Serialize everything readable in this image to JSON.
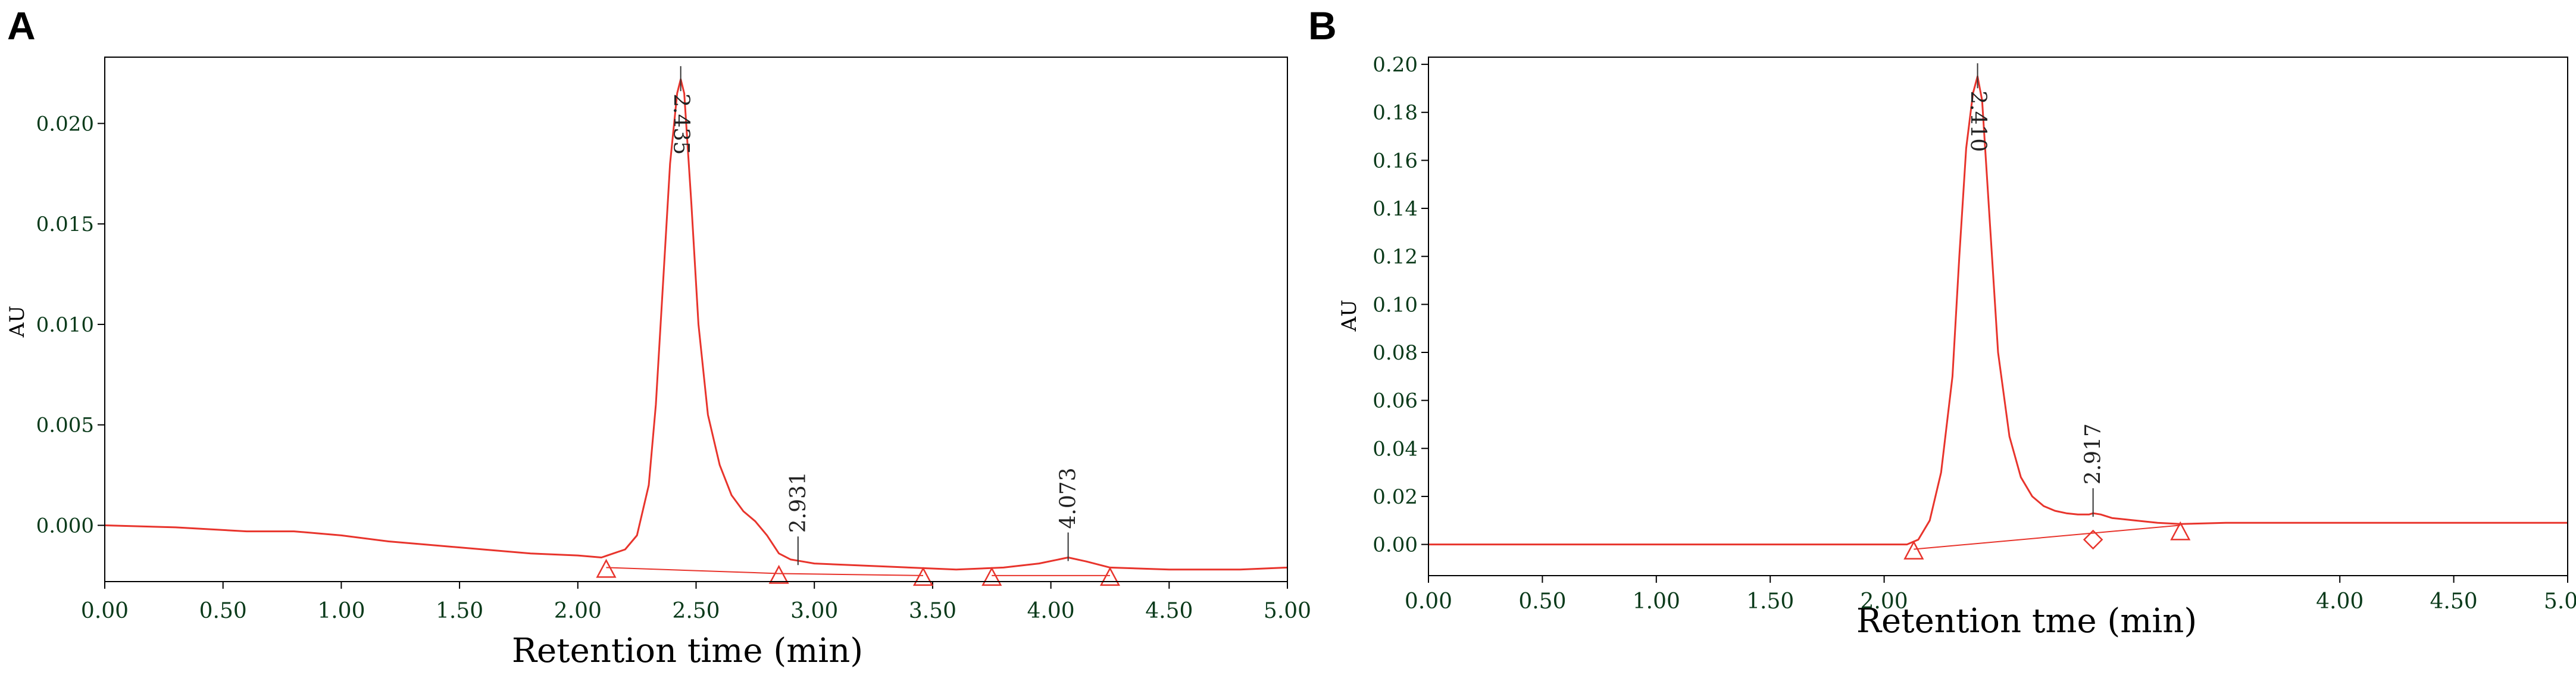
{
  "chart_data": [
    {
      "panel_label": "A",
      "type": "line",
      "xlabel": "Retention time (min)",
      "ylabel": "AU",
      "xlim": [
        0,
        5
      ],
      "ylim": [
        -0.0028,
        0.0233
      ],
      "x_ticks": [
        0,
        0.5,
        1,
        1.5,
        2,
        2.5,
        3,
        3.5,
        4,
        4.5,
        5
      ],
      "x_tick_labels": [
        "0.00",
        "0.50",
        "1.00",
        "1.50",
        "2.00",
        "2.50",
        "3.00",
        "3.50",
        "4.00",
        "4.50",
        "5.00"
      ],
      "y_ticks": [
        0,
        0.005,
        0.01,
        0.015,
        0.02
      ],
      "y_tick_labels": [
        "0.000",
        "0.005",
        "0.010",
        "0.015",
        "0.020"
      ],
      "color": "#e8342c",
      "series": [
        {
          "x": [
            0,
            0.3,
            0.6,
            0.8,
            1.0,
            1.2,
            1.4,
            1.6,
            1.8,
            2.0,
            2.1,
            2.2,
            2.25,
            2.3,
            2.33,
            2.36,
            2.39,
            2.42,
            2.435,
            2.45,
            2.48,
            2.51,
            2.55,
            2.6,
            2.65,
            2.7,
            2.75,
            2.8,
            2.85,
            2.9,
            2.95,
            3.0,
            3.2,
            3.4,
            3.6,
            3.8,
            3.95,
            4.073,
            4.15,
            4.25,
            4.5,
            4.8,
            5.0
          ],
          "y": [
            0.0,
            -0.0001,
            -0.0003,
            -0.0003,
            -0.0005,
            -0.0008,
            -0.001,
            -0.0012,
            -0.0014,
            -0.0015,
            -0.0016,
            -0.0012,
            -0.0005,
            0.002,
            0.006,
            0.012,
            0.018,
            0.0215,
            0.0222,
            0.0215,
            0.016,
            0.01,
            0.0055,
            0.003,
            0.0015,
            0.0007,
            0.0002,
            -0.0005,
            -0.0014,
            -0.0017,
            -0.0018,
            -0.0019,
            -0.002,
            -0.0021,
            -0.0022,
            -0.0021,
            -0.0019,
            -0.0016,
            -0.0018,
            -0.0021,
            -0.0022,
            -0.0022,
            -0.0021
          ]
        }
      ],
      "baselines": [
        {
          "x": [
            2.12,
            2.85
          ],
          "y": [
            -0.0021,
            -0.0024
          ]
        },
        {
          "x": [
            2.85,
            3.46
          ],
          "y": [
            -0.0024,
            -0.0025
          ]
        },
        {
          "x": [
            3.75,
            4.25
          ],
          "y": [
            -0.0025,
            -0.0025
          ]
        }
      ],
      "integration_markers": [
        {
          "x": 2.12,
          "y": -0.0021,
          "shape": "triangle"
        },
        {
          "x": 2.85,
          "y": -0.0024,
          "shape": "triangle"
        },
        {
          "x": 3.46,
          "y": -0.0025,
          "shape": "triangle"
        },
        {
          "x": 3.75,
          "y": -0.0025,
          "shape": "triangle"
        },
        {
          "x": 4.25,
          "y": -0.0025,
          "shape": "triangle"
        }
      ],
      "peak_labels": [
        {
          "x": 2.435,
          "y": 0.0222,
          "text": "2.435"
        },
        {
          "x": 2.931,
          "y": -0.0018,
          "text": "2.931"
        },
        {
          "x": 4.073,
          "y": -0.0016,
          "text": "4.073"
        }
      ]
    },
    {
      "panel_label": "B",
      "type": "line",
      "xlabel": "Retention tme (min)",
      "ylabel": "AU",
      "xlim": [
        0,
        5
      ],
      "ylim": [
        -0.013,
        0.203
      ],
      "x_ticks": [
        0,
        0.5,
        1,
        1.5,
        2,
        4,
        4.5,
        5
      ],
      "x_tick_labels": [
        "0.00",
        "0.50",
        "1.00",
        "1.50",
        "2.00",
        "4.00",
        "4.50",
        "5.00"
      ],
      "y_ticks": [
        0,
        0.02,
        0.04,
        0.06,
        0.08,
        0.1,
        0.12,
        0.14,
        0.16,
        0.18,
        0.2
      ],
      "y_tick_labels": [
        "0.00",
        "0.02",
        "0.04",
        "0.06",
        "0.08",
        "0.10",
        "0.12",
        "0.14",
        "0.16",
        "0.18",
        "0.20"
      ],
      "color": "#e8342c",
      "series": [
        {
          "x": [
            0,
            0.5,
            1.0,
            1.5,
            2.0,
            2.1,
            2.15,
            2.2,
            2.25,
            2.3,
            2.33,
            2.36,
            2.39,
            2.41,
            2.43,
            2.46,
            2.5,
            2.55,
            2.6,
            2.65,
            2.7,
            2.75,
            2.8,
            2.85,
            2.9,
            2.917,
            2.95,
            3.0,
            3.1,
            3.2,
            3.3,
            3.5,
            3.7,
            4.0,
            4.5,
            5.0
          ],
          "y": [
            0.0,
            0.0,
            0.0,
            0.0,
            0.0,
            0.0,
            0.002,
            0.01,
            0.03,
            0.07,
            0.12,
            0.165,
            0.188,
            0.195,
            0.185,
            0.14,
            0.08,
            0.045,
            0.028,
            0.02,
            0.016,
            0.014,
            0.013,
            0.0125,
            0.0125,
            0.013,
            0.0125,
            0.011,
            0.01,
            0.009,
            0.0085,
            0.009,
            0.009,
            0.009,
            0.009,
            0.009
          ]
        }
      ],
      "baselines": [
        {
          "x": [
            2.13,
            3.3
          ],
          "y": [
            -0.002,
            0.008
          ]
        }
      ],
      "integration_markers": [
        {
          "x": 2.13,
          "y": -0.002,
          "shape": "triangle"
        },
        {
          "x": 2.917,
          "y": 0.003,
          "shape": "diamond"
        },
        {
          "x": 3.3,
          "y": 0.006,
          "shape": "triangle"
        }
      ],
      "peak_labels": [
        {
          "x": 2.41,
          "y": 0.195,
          "text": "2.410"
        },
        {
          "x": 2.917,
          "y": 0.013,
          "text": "2.917"
        }
      ]
    }
  ]
}
